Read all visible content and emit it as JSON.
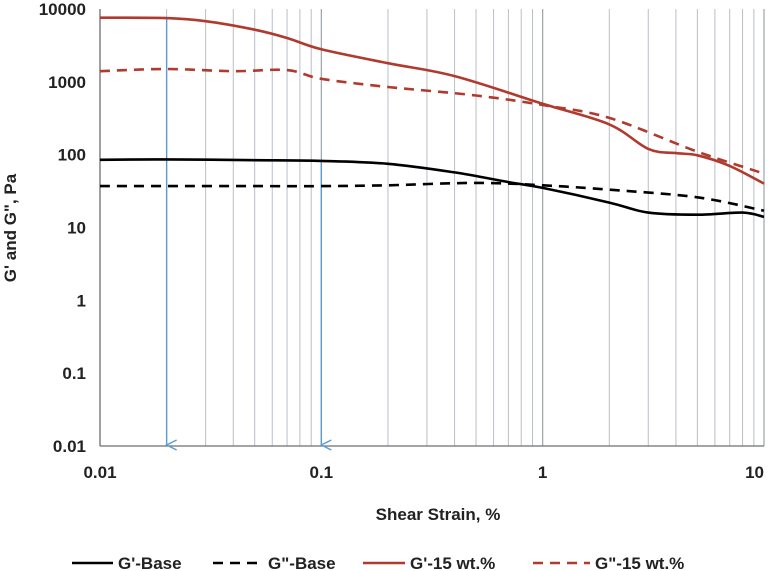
{
  "chart_data": {
    "type": "line",
    "xlabel": "Shear Strain, %",
    "ylabel": "G' and G\", Pa",
    "x_scale": "log",
    "y_scale": "log",
    "xlim": [
      0.01,
      10
    ],
    "ylim": [
      0.01,
      10000
    ],
    "x_ticks": [
      "0.01",
      "0.1",
      "1",
      "10"
    ],
    "y_ticks": [
      "0.01",
      "0.1",
      "1",
      "10",
      "100",
      "1000",
      "10000"
    ],
    "grid": "vertical minor and major",
    "legend": "bottom",
    "series": [
      {
        "name": "G'-Base",
        "color": "#000000",
        "dash": "solid",
        "x": [
          0.01,
          0.02,
          0.05,
          0.1,
          0.2,
          0.4,
          0.7,
          1,
          2,
          3,
          5,
          8,
          10
        ],
        "y": [
          85,
          86,
          84,
          82,
          75,
          57,
          42,
          35,
          22,
          16,
          15,
          16,
          14
        ]
      },
      {
        "name": "G\"-Base",
        "color": "#000000",
        "dash": "dashed",
        "x": [
          0.01,
          0.02,
          0.05,
          0.1,
          0.2,
          0.5,
          1,
          2,
          5,
          10
        ],
        "y": [
          37,
          37,
          37,
          37,
          38,
          41,
          38,
          33,
          26,
          17
        ]
      },
      {
        "name": "G'-15 wt.%",
        "color": "#b03a2e",
        "dash": "solid",
        "x": [
          0.01,
          0.02,
          0.03,
          0.05,
          0.07,
          0.1,
          0.2,
          0.4,
          1,
          2,
          3,
          4,
          5,
          7,
          10
        ],
        "y": [
          7600,
          7500,
          6800,
          5200,
          4000,
          2800,
          1800,
          1200,
          500,
          260,
          120,
          105,
          98,
          70,
          40
        ]
      },
      {
        "name": "G\"-15 wt.%",
        "color": "#b03a2e",
        "dash": "dashed",
        "x": [
          0.01,
          0.02,
          0.04,
          0.07,
          0.1,
          0.2,
          0.5,
          1,
          2,
          5,
          10
        ],
        "y": [
          1400,
          1500,
          1400,
          1450,
          1100,
          850,
          650,
          480,
          320,
          110,
          55
        ]
      }
    ],
    "annotations": [
      {
        "type": "arrow",
        "color": "#5b9bd5",
        "x": 0.02,
        "y_from": 7500,
        "y_to": 0.01
      },
      {
        "type": "arrow",
        "color": "#5b9bd5",
        "x": 0.1,
        "y_from": 82,
        "y_to": 0.01
      }
    ]
  }
}
